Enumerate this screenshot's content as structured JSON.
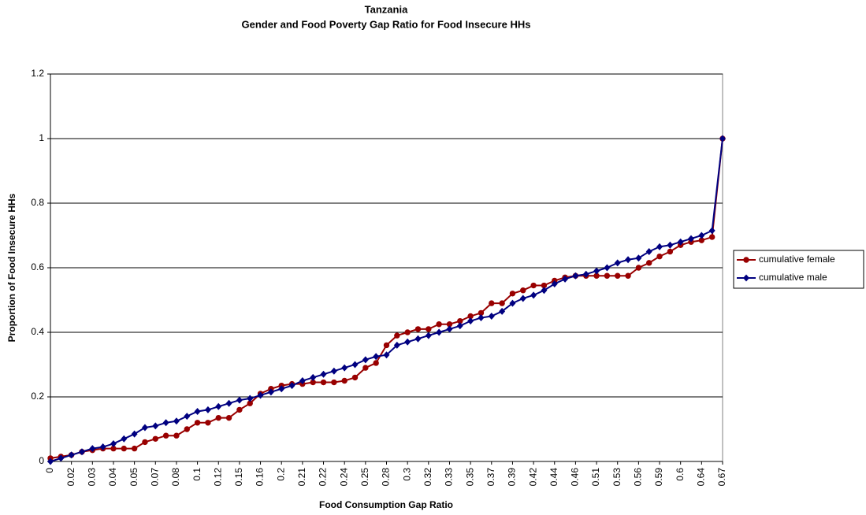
{
  "chart_data": {
    "type": "line",
    "title": "Tanzania",
    "subtitle": "Gender and Food Poverty Gap Ratio for Food Insecure HHs",
    "x_label": "Food Consumption Gap Ratio",
    "y_label": "Proportion of Food Insecure HHs",
    "categories": [
      "0",
      null,
      "0.02",
      null,
      "0.03",
      null,
      "0.04",
      null,
      "0.05",
      null,
      "0.07",
      null,
      "0.08",
      null,
      "0.1",
      null,
      "0.12",
      null,
      "0.15",
      null,
      "0.16",
      null,
      "0.2",
      null,
      "0.21",
      null,
      "0.22",
      null,
      "0.24",
      null,
      "0.25",
      null,
      "0.28",
      null,
      "0.3",
      null,
      "0.32",
      null,
      "0.33",
      null,
      "0.35",
      null,
      "0.37",
      null,
      "0.39",
      null,
      "0.42",
      null,
      "0.44",
      null,
      "0.46",
      null,
      "0.51",
      null,
      "0.53",
      null,
      "0.56",
      null,
      "0.59",
      null,
      "0.6",
      null,
      "0.64",
      null,
      "0.67"
    ],
    "series": [
      {
        "name": "cumulative female",
        "color": "#990000",
        "marker": "circle",
        "values": [
          0.01,
          0.015,
          0.02,
          0.03,
          0.035,
          0.04,
          0.04,
          0.04,
          0.04,
          0.06,
          0.07,
          0.08,
          0.08,
          0.1,
          0.12,
          0.12,
          0.135,
          0.135,
          0.16,
          0.18,
          0.21,
          0.225,
          0.235,
          0.24,
          0.24,
          0.245,
          0.245,
          0.245,
          0.25,
          0.26,
          0.29,
          0.305,
          0.36,
          0.39,
          0.4,
          0.41,
          0.41,
          0.425,
          0.425,
          0.435,
          0.45,
          0.46,
          0.49,
          0.49,
          0.52,
          0.53,
          0.545,
          0.545,
          0.56,
          0.57,
          0.575,
          0.575,
          0.575,
          0.575,
          0.575,
          0.575,
          0.6,
          0.615,
          0.635,
          0.65,
          0.67,
          0.68,
          0.685,
          0.695,
          1
        ]
      },
      {
        "name": "cumulative male",
        "color": "#000080",
        "marker": "diamond",
        "values": [
          0,
          0.01,
          0.02,
          0.03,
          0.04,
          0.045,
          0.055,
          0.07,
          0.085,
          0.105,
          0.11,
          0.12,
          0.125,
          0.14,
          0.155,
          0.16,
          0.17,
          0.18,
          0.19,
          0.195,
          0.205,
          0.215,
          0.225,
          0.235,
          0.25,
          0.26,
          0.27,
          0.28,
          0.29,
          0.3,
          0.315,
          0.325,
          0.33,
          0.36,
          0.37,
          0.38,
          0.39,
          0.4,
          0.41,
          0.42,
          0.435,
          0.445,
          0.45,
          0.465,
          0.49,
          0.505,
          0.515,
          0.53,
          0.55,
          0.565,
          0.575,
          0.58,
          0.59,
          0.6,
          0.615,
          0.625,
          0.63,
          0.65,
          0.665,
          0.67,
          0.68,
          0.69,
          0.7,
          0.715,
          1
        ]
      }
    ],
    "ylim": [
      0,
      1.2
    ],
    "yticks": [
      0,
      0.2,
      0.4,
      0.6,
      0.8,
      1,
      1.2
    ],
    "grid": true,
    "legend": "right"
  }
}
